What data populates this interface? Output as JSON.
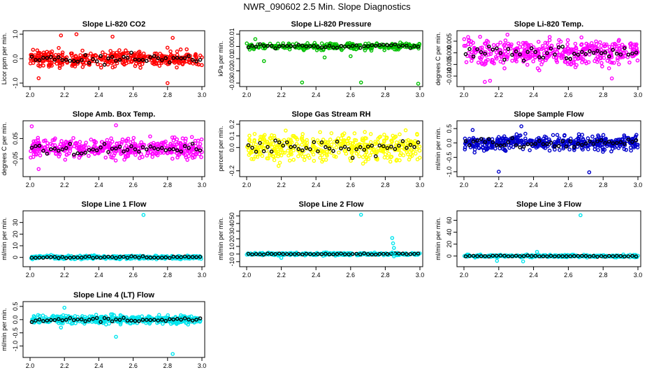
{
  "figure_title": "NWR_090602  2.5 Min. Slope Diagnostics",
  "colors": {
    "ink": "#000000"
  },
  "chart_data": [
    {
      "type": "scatter",
      "title": "Slope Li-820 CO2",
      "ylabel": "Licor ppm per min.",
      "color": "#ff0000",
      "xlim": [
        2.0,
        3.0
      ],
      "ylim": [
        -1.0,
        1.0
      ],
      "xticks": [
        "2.0",
        "2.2",
        "2.4",
        "2.6",
        "2.8",
        "3.0"
      ],
      "yticks": [
        "-1.0",
        "0.0",
        "1.0"
      ],
      "band": 0.5,
      "n": 400,
      "outliers": [
        [
          2.18,
          0.95
        ],
        [
          2.27,
          1.0
        ],
        [
          2.48,
          0.9
        ],
        [
          2.8,
          -1.0
        ],
        [
          2.83,
          0.85
        ],
        [
          2.05,
          -0.8
        ]
      ]
    },
    {
      "type": "scatter",
      "title": "Slope Li-820 Pressure",
      "ylabel": "kPa per min.",
      "color": "#00c000",
      "xlim": [
        2.0,
        3.0
      ],
      "ylim": [
        -0.03,
        0.01
      ],
      "xticks": [
        "2.0",
        "2.2",
        "2.4",
        "2.6",
        "2.8",
        "3.0"
      ],
      "yticks": [
        "-0.03",
        "-0.02",
        "-0.01",
        "0.00",
        "0.01"
      ],
      "band": 0.004,
      "n": 300,
      "outliers": [
        [
          2.32,
          -0.0295
        ],
        [
          2.66,
          -0.0295
        ],
        [
          2.99,
          -0.0305
        ],
        [
          2.1,
          -0.012
        ],
        [
          2.45,
          -0.009
        ],
        [
          2.6,
          -0.008
        ],
        [
          2.05,
          0.006
        ]
      ]
    },
    {
      "type": "scatter",
      "title": "Slope Li-820 Temp.",
      "ylabel": "degrees C per min.",
      "color": "#ff00ff",
      "xlim": [
        2.0,
        3.0
      ],
      "ylim": [
        -0.013,
        0.008
      ],
      "xticks": [
        "2.0",
        "2.2",
        "2.4",
        "2.6",
        "2.8",
        "3.0"
      ],
      "yticks": [
        "-0.010",
        "-0.005",
        "0.000",
        "0.005"
      ],
      "band": 0.008,
      "n": 420,
      "outliers": [
        [
          2.12,
          -0.0125
        ],
        [
          2.15,
          -0.012
        ],
        [
          2.25,
          0.0078
        ],
        [
          2.85,
          -0.011
        ]
      ]
    },
    {
      "type": "scatter",
      "title": "Slope Amb. Box Temp.",
      "ylabel": "degrees C per min.",
      "color": "#ff00ff",
      "xlim": [
        2.0,
        3.0
      ],
      "ylim": [
        -0.12,
        0.12
      ],
      "xticks": [
        "2.0",
        "2.2",
        "2.4",
        "2.6",
        "2.8",
        "3.0"
      ],
      "yticks": [
        "-0.05",
        "0.05"
      ],
      "band": 0.07,
      "n": 440,
      "outliers": [
        [
          2.01,
          0.11
        ],
        [
          2.5,
          0.115
        ],
        [
          2.05,
          -0.1
        ]
      ]
    },
    {
      "type": "scatter",
      "title": "Slope Gas Stream RH",
      "ylabel": "percent per min.",
      "color": "#ffff00",
      "xlim": [
        2.0,
        3.0
      ],
      "ylim": [
        -0.22,
        0.2
      ],
      "xticks": [
        "2.0",
        "2.2",
        "2.4",
        "2.6",
        "2.8",
        "3.0"
      ],
      "yticks": [
        "-0.2",
        "0.0",
        "0.1",
        "0.2"
      ],
      "band": 0.17,
      "n": 440,
      "outliers": []
    },
    {
      "type": "scatter",
      "title": "Slope Sample Flow",
      "ylabel": "ml/min per min.",
      "color": "#0000cc",
      "xlim": [
        2.0,
        3.0
      ],
      "ylim": [
        -1.05,
        0.65
      ],
      "xticks": [
        "2.0",
        "2.2",
        "2.4",
        "2.6",
        "2.8",
        "3.0"
      ],
      "yticks": [
        "-1.0",
        "-0.5",
        "0.0",
        "0.5"
      ],
      "band": 0.38,
      "n": 440,
      "outliers": [
        [
          2.33,
          0.58
        ],
        [
          2.2,
          -1.0
        ],
        [
          2.72,
          -1.02
        ],
        [
          2.05,
          0.45
        ]
      ]
    },
    {
      "type": "scatter",
      "title": "Slope Line 1 Flow",
      "ylabel": "ml/min per min.",
      "color": "#00e5ee",
      "xlim": [
        2.0,
        3.0
      ],
      "ylim": [
        -5,
        37
      ],
      "xticks": [
        "2.0",
        "2.2",
        "2.4",
        "2.6",
        "2.8",
        "3.0"
      ],
      "yticks": [
        "0",
        "10",
        "20",
        "30"
      ],
      "band": 2.2,
      "n": 400,
      "outliers": [
        [
          2.66,
          36.5
        ]
      ]
    },
    {
      "type": "scatter",
      "title": "Slope Line 2 Flow",
      "ylabel": "ml/min per min.",
      "color": "#00e5ee",
      "xlim": [
        2.0,
        3.0
      ],
      "ylim": [
        -12,
        52
      ],
      "xticks": [
        "2.0",
        "2.2",
        "2.4",
        "2.6",
        "2.8",
        "3.0"
      ],
      "yticks": [
        "-10",
        "0",
        "10",
        "20",
        "30",
        "40",
        "50"
      ],
      "band": 2.5,
      "n": 340,
      "outliers": [
        [
          2.66,
          51.5
        ],
        [
          2.84,
          21
        ],
        [
          2.845,
          14
        ],
        [
          2.85,
          8
        ],
        [
          2.84,
          2
        ],
        [
          2.85,
          -3
        ],
        [
          2.2,
          -5
        ]
      ]
    },
    {
      "type": "scatter",
      "title": "Slope Line 3 Flow",
      "ylabel": "ml/min per min.",
      "color": "#00e5ee",
      "xlim": [
        2.0,
        3.0
      ],
      "ylim": [
        -12,
        70
      ],
      "xticks": [
        "2.0",
        "2.2",
        "2.4",
        "2.6",
        "2.8",
        "3.0"
      ],
      "yticks": [
        "0",
        "20",
        "40",
        "60"
      ],
      "band": 3.0,
      "n": 340,
      "outliers": [
        [
          2.67,
          68.5
        ],
        [
          2.19,
          -8
        ],
        [
          2.34,
          -9
        ],
        [
          2.42,
          7
        ]
      ]
    },
    {
      "type": "scatter",
      "title": "Slope Line 4 (LT) Flow",
      "ylabel": "ml/min per min.",
      "color": "#00e5ee",
      "xlim": [
        2.0,
        3.0
      ],
      "ylim": [
        -1.3,
        0.55
      ],
      "xticks": [
        "2.0",
        "2.2",
        "2.4",
        "2.6",
        "2.8",
        "3.0"
      ],
      "yticks": [
        "-1.0",
        "-0.5",
        "0.0",
        "0.5"
      ],
      "band": 0.22,
      "n": 440,
      "outliers": [
        [
          2.83,
          -1.3
        ],
        [
          2.5,
          -0.65
        ],
        [
          2.2,
          0.45
        ],
        [
          2.18,
          -0.3
        ]
      ]
    }
  ]
}
